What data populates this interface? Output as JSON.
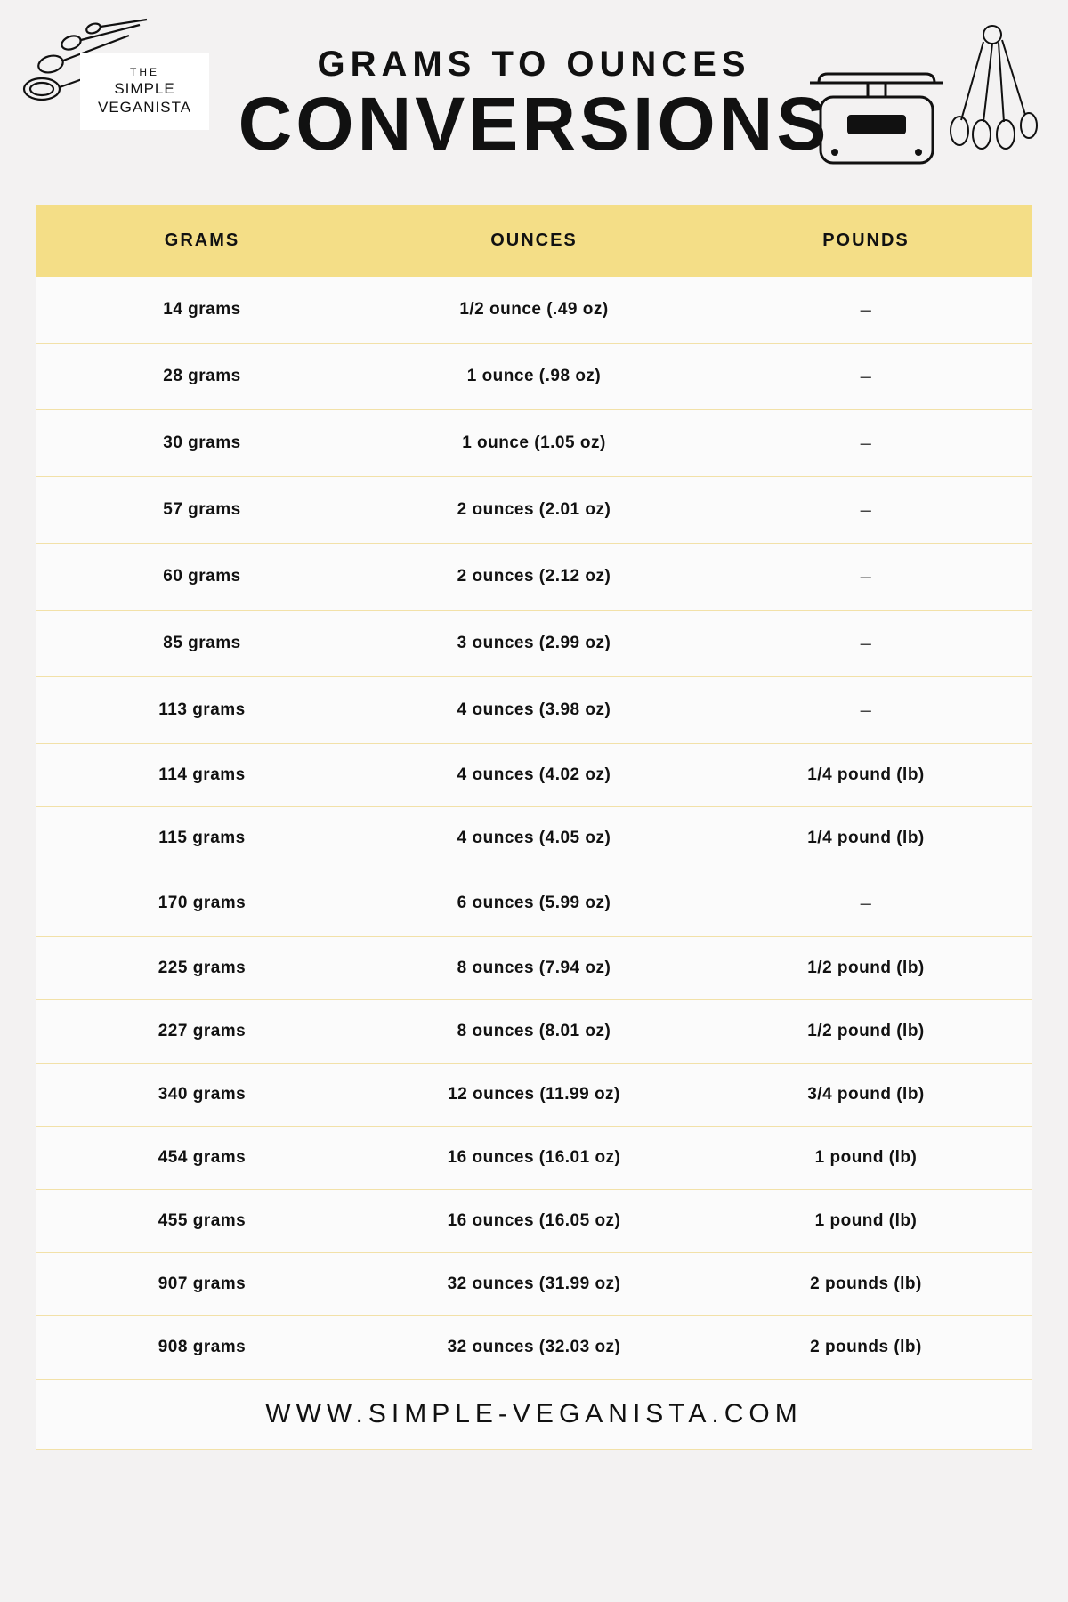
{
  "brand": {
    "line1": "THE",
    "line2": "SIMPLE",
    "line3": "VEGANISTA"
  },
  "header": {
    "subtitle": "GRAMS TO OUNCES",
    "title": "CONVERSIONS"
  },
  "colors": {
    "page_bg": "#f3f2f2",
    "header_bg": "#f4de87",
    "cell_bg": "#fbfbfb",
    "cell_border": "#f2e1a8",
    "text": "#111111"
  },
  "table": {
    "columns": [
      "GRAMS",
      "OUNCES",
      "POUNDS"
    ],
    "rows": [
      {
        "grams": "14 grams",
        "ounces": "1/2 ounce (.49 oz)",
        "pounds": "–"
      },
      {
        "grams": "28 grams",
        "ounces": "1 ounce (.98 oz)",
        "pounds": "–"
      },
      {
        "grams": "30 grams",
        "ounces": "1 ounce (1.05 oz)",
        "pounds": "–"
      },
      {
        "grams": "57 grams",
        "ounces": "2 ounces (2.01 oz)",
        "pounds": "–"
      },
      {
        "grams": "60 grams",
        "ounces": "2 ounces (2.12 oz)",
        "pounds": "–"
      },
      {
        "grams": "85 grams",
        "ounces": "3 ounces (2.99 oz)",
        "pounds": "–"
      },
      {
        "grams": "113 grams",
        "ounces": "4 ounces (3.98 oz)",
        "pounds": "–"
      },
      {
        "grams": "114 grams",
        "ounces": "4 ounces (4.02 oz)",
        "pounds": "1/4 pound (lb)"
      },
      {
        "grams": "115 grams",
        "ounces": "4 ounces (4.05 oz)",
        "pounds": "1/4 pound (lb)"
      },
      {
        "grams": "170 grams",
        "ounces": "6 ounces (5.99 oz)",
        "pounds": "–"
      },
      {
        "grams": "225 grams",
        "ounces": "8 ounces (7.94 oz)",
        "pounds": "1/2 pound (lb)"
      },
      {
        "grams": "227 grams",
        "ounces": "8 ounces (8.01 oz)",
        "pounds": "1/2 pound (lb)"
      },
      {
        "grams": "340 grams",
        "ounces": "12 ounces (11.99 oz)",
        "pounds": "3/4 pound (lb)"
      },
      {
        "grams": "454 grams",
        "ounces": "16 ounces (16.01 oz)",
        "pounds": "1 pound (lb)"
      },
      {
        "grams": "455 grams",
        "ounces": "16 ounces (16.05 oz)",
        "pounds": "1 pound (lb)"
      },
      {
        "grams": "907 grams",
        "ounces": "32 ounces (31.99 oz)",
        "pounds": "2 pounds (lb)"
      },
      {
        "grams": "908 grams",
        "ounces": "32 ounces (32.03 oz)",
        "pounds": "2 pounds (lb)"
      }
    ]
  },
  "footer": {
    "url": "WWW.SIMPLE-VEGANISTA.COM"
  }
}
